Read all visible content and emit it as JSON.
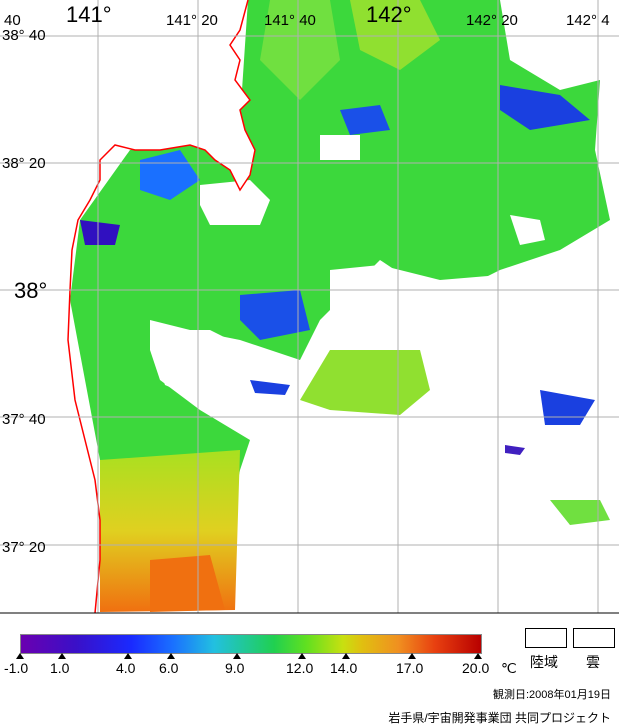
{
  "map": {
    "lon_labels": {
      "l140": "40",
      "l141": "141°",
      "l141_20": "141° 20",
      "l141_40": "141° 40",
      "l142": "142°",
      "l142_20": "142° 20",
      "l142_40": "142° 4"
    },
    "lat_labels": {
      "l38_40": "38° 40",
      "l38_20": "38° 20",
      "l38": "38°",
      "l37_40": "37° 40",
      "l37_20": "37° 20"
    },
    "colors": {
      "land": "#ffffff",
      "coast": "#ff0000",
      "grid": "#b0b0b0",
      "sst_cold": "#1a2aff",
      "sst_mid": "#20d050",
      "sst_warm": "#f09020"
    }
  },
  "legend": {
    "unit": "℃",
    "ticks": [
      "-1.0",
      "1.0",
      "4.0",
      "6.0",
      "9.0",
      "12.0",
      "14.0",
      "17.0",
      "20.0"
    ],
    "land_label": "陸域",
    "cloud_label": "雲"
  },
  "footer": {
    "date": "観測日:2008年01月19日",
    "credit": "岩手県/宇宙開発事業団 共同プロジェクト"
  }
}
